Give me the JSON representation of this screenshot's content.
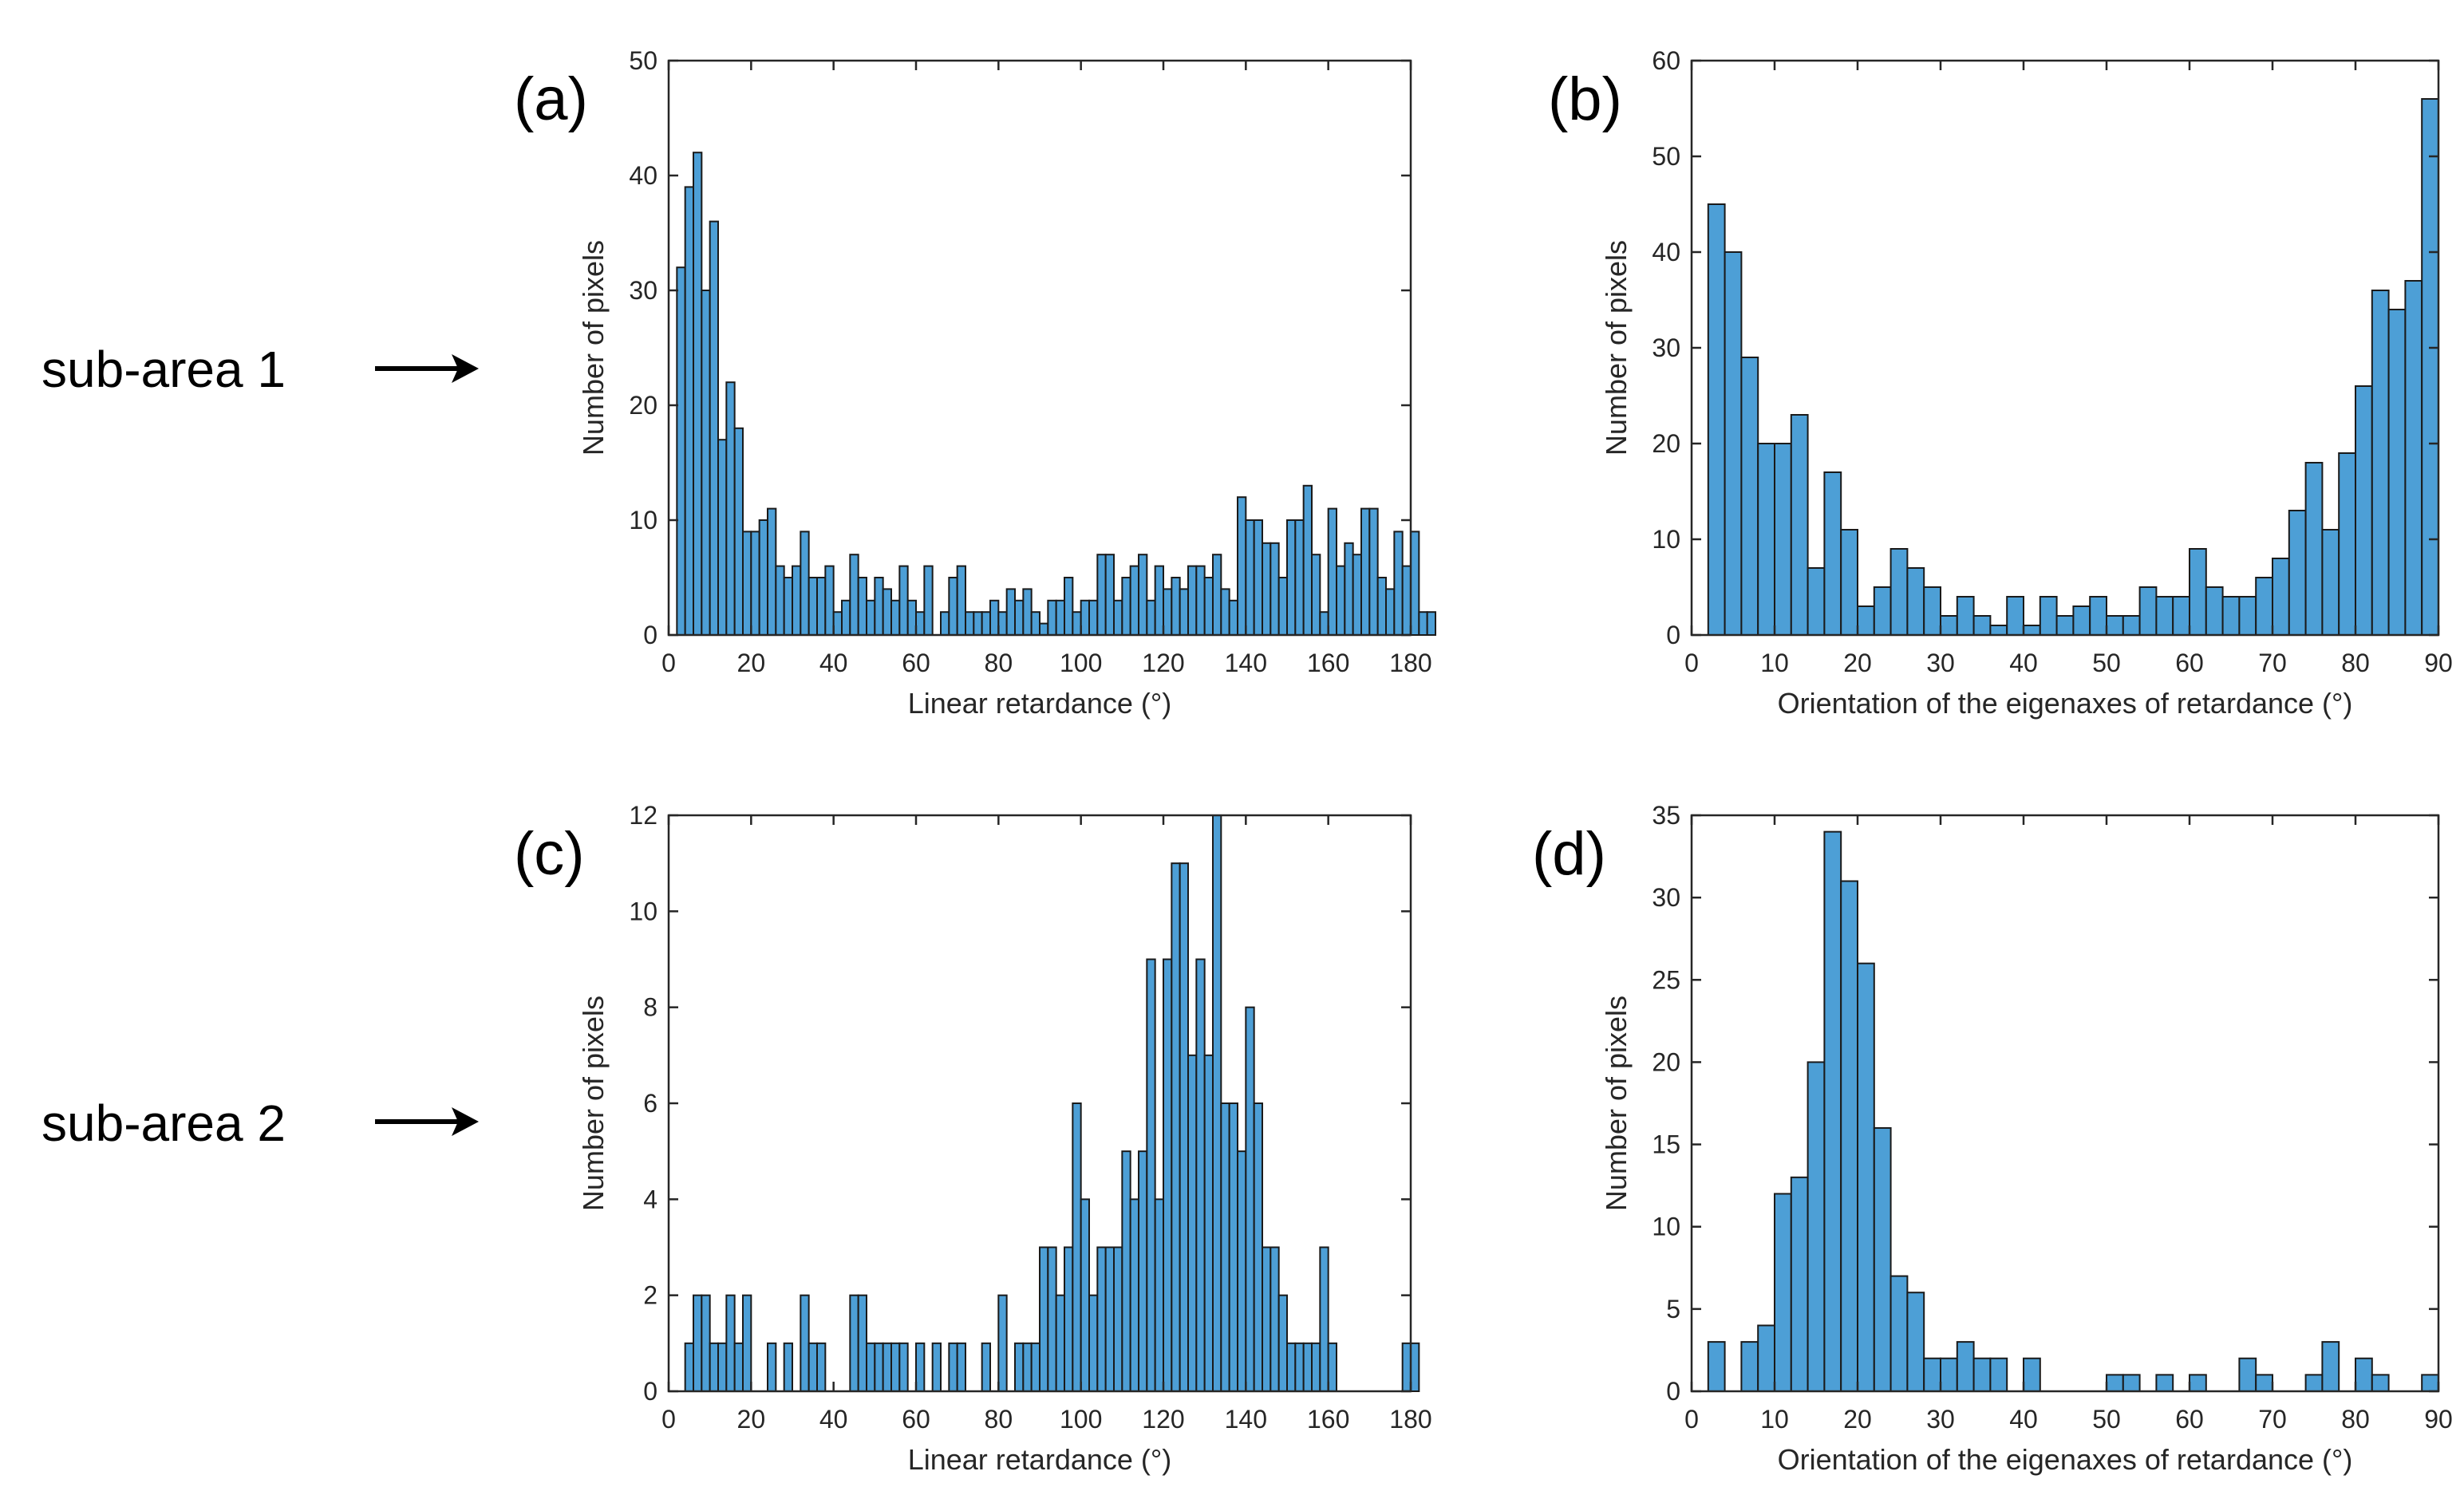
{
  "colors": {
    "bar": "#4d9fd6",
    "bar_edge": "#1a1a1a",
    "axis": "#262626"
  },
  "rows": [
    {
      "label": "sub-area 1"
    },
    {
      "label": "sub-area 2"
    }
  ],
  "chart_data": [
    {
      "id": "a",
      "panel_label": "(a)",
      "type": "bar",
      "row": 0,
      "xlabel": "Linear retardance (°)",
      "ylabel": "Number of pixels",
      "xlim": [
        0,
        180
      ],
      "ylim": [
        0,
        50
      ],
      "xticks": [
        0,
        20,
        40,
        60,
        80,
        100,
        120,
        140,
        160,
        180
      ],
      "yticks": [
        0,
        10,
        20,
        30,
        40,
        50
      ],
      "bin_start": 2,
      "bin_width": 2,
      "values": [
        32,
        39,
        42,
        30,
        36,
        17,
        22,
        18,
        9,
        9,
        10,
        11,
        6,
        5,
        6,
        9,
        5,
        5,
        6,
        2,
        3,
        7,
        5,
        3,
        5,
        4,
        3,
        6,
        3,
        2,
        6,
        0,
        2,
        5,
        6,
        2,
        2,
        2,
        3,
        2,
        4,
        3,
        4,
        2,
        1,
        3,
        3,
        5,
        2,
        3,
        3,
        7,
        7,
        3,
        5,
        6,
        7,
        3,
        6,
        4,
        5,
        4,
        6,
        6,
        5,
        7,
        4,
        3,
        12,
        10,
        10,
        8,
        8,
        5,
        10,
        10,
        13,
        7,
        2,
        11,
        6,
        8,
        7,
        11,
        11,
        5,
        4,
        9,
        6,
        9,
        2,
        2,
        0,
        0
      ]
    },
    {
      "id": "b",
      "panel_label": "(b)",
      "type": "bar",
      "row": 0,
      "xlabel": "Orientation of the eigenaxes of retardance (°)",
      "ylabel": "Number of pixels",
      "xlim": [
        0,
        90
      ],
      "ylim": [
        0,
        60
      ],
      "xticks": [
        0,
        10,
        20,
        30,
        40,
        50,
        60,
        70,
        80,
        90
      ],
      "yticks": [
        0,
        10,
        20,
        30,
        40,
        50,
        60
      ],
      "bin_start": 2,
      "bin_width": 2,
      "values": [
        45,
        40,
        29,
        20,
        20,
        23,
        7,
        17,
        11,
        3,
        5,
        9,
        7,
        5,
        2,
        4,
        2,
        1,
        4,
        1,
        4,
        2,
        3,
        4,
        2,
        2,
        5,
        4,
        4,
        9,
        5,
        4,
        4,
        6,
        8,
        13,
        18,
        11,
        19,
        26,
        36,
        34,
        37,
        56
      ]
    },
    {
      "id": "c",
      "panel_label": "(c)",
      "type": "bar",
      "row": 1,
      "xlabel": "Linear retardance (°)",
      "ylabel": "Number of pixels",
      "xlim": [
        0,
        180
      ],
      "ylim": [
        0,
        12
      ],
      "xticks": [
        0,
        20,
        40,
        60,
        80,
        100,
        120,
        140,
        160,
        180
      ],
      "yticks": [
        0,
        2,
        4,
        6,
        8,
        10,
        12
      ],
      "bin_start": 4,
      "bin_width": 2,
      "values": [
        1,
        2,
        2,
        1,
        1,
        2,
        1,
        2,
        0,
        0,
        1,
        0,
        1,
        0,
        2,
        1,
        1,
        0,
        0,
        0,
        2,
        2,
        1,
        1,
        1,
        1,
        1,
        0,
        1,
        0,
        1,
        0,
        1,
        1,
        0,
        0,
        1,
        0,
        2,
        0,
        1,
        1,
        1,
        3,
        3,
        2,
        3,
        6,
        4,
        2,
        3,
        3,
        3,
        5,
        4,
        5,
        9,
        4,
        9,
        11,
        11,
        7,
        9,
        7,
        12,
        6,
        6,
        5,
        8,
        6,
        3,
        3,
        2,
        1,
        1,
        1,
        1,
        3,
        1,
        0,
        0,
        0,
        0,
        0,
        0,
        0,
        0,
        1,
        1
      ]
    },
    {
      "id": "d",
      "panel_label": "(d)",
      "type": "bar",
      "row": 1,
      "xlabel": "Orientation of the eigenaxes of retardance (°)",
      "ylabel": "Number of pixels",
      "xlim": [
        0,
        90
      ],
      "ylim": [
        0,
        35
      ],
      "xticks": [
        0,
        10,
        20,
        30,
        40,
        50,
        60,
        70,
        80,
        90
      ],
      "yticks": [
        0,
        5,
        10,
        15,
        20,
        25,
        30,
        35
      ],
      "bin_start": 2,
      "bin_width": 2,
      "values": [
        3,
        0,
        3,
        4,
        12,
        13,
        20,
        34,
        31,
        26,
        16,
        7,
        6,
        2,
        2,
        3,
        2,
        2,
        0,
        2,
        0,
        0,
        0,
        0,
        1,
        1,
        0,
        1,
        0,
        1,
        0,
        0,
        2,
        1,
        0,
        0,
        1,
        3,
        0,
        2,
        1,
        0,
        0,
        1
      ]
    }
  ]
}
